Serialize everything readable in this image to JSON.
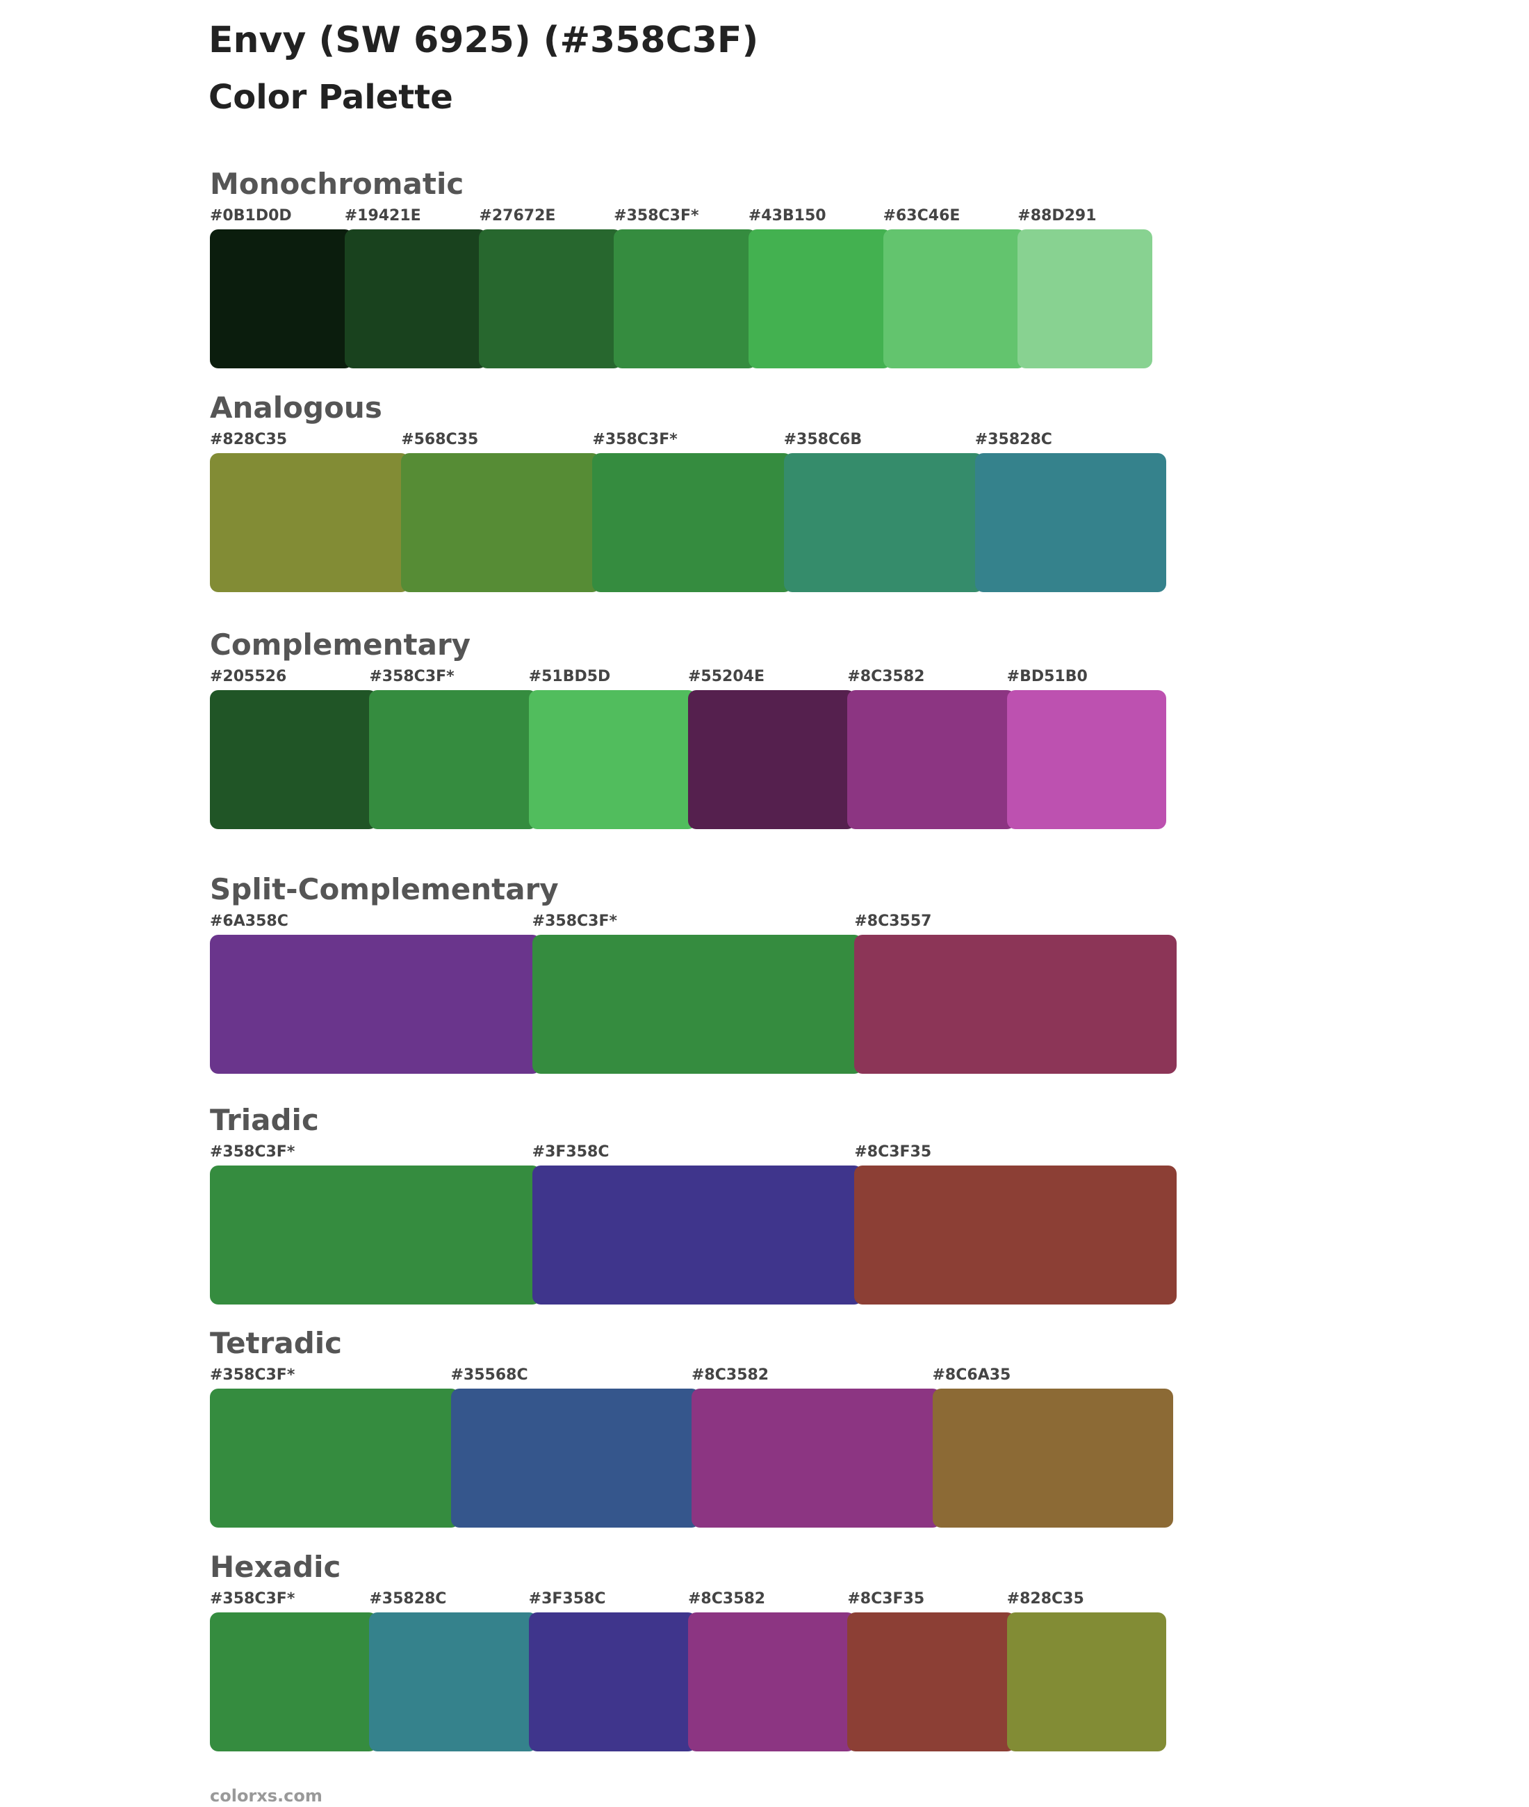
{
  "header": {
    "title": "Envy (SW 6925) (#358C3F)",
    "subtitle": "Color Palette"
  },
  "sections": [
    {
      "title": "Monochromatic",
      "swatches": [
        {
          "label": "#0B1D0D",
          "color": "#0B1D0D"
        },
        {
          "label": "#19421E",
          "color": "#19421E"
        },
        {
          "label": "#27672E",
          "color": "#27672E"
        },
        {
          "label": "#358C3F*",
          "color": "#358C3F"
        },
        {
          "label": "#43B150",
          "color": "#43B150"
        },
        {
          "label": "#63C46E",
          "color": "#63C46E"
        },
        {
          "label": "#88D291",
          "color": "#88D291"
        }
      ]
    },
    {
      "title": "Analogous",
      "swatches": [
        {
          "label": "#828C35",
          "color": "#828C35"
        },
        {
          "label": "#568C35",
          "color": "#568C35"
        },
        {
          "label": "#358C3F*",
          "color": "#358C3F"
        },
        {
          "label": "#358C6B",
          "color": "#358C6B"
        },
        {
          "label": "#35828C",
          "color": "#35828C"
        }
      ]
    },
    {
      "title": "Complementary",
      "swatches": [
        {
          "label": "#205526",
          "color": "#205526"
        },
        {
          "label": "#358C3F*",
          "color": "#358C3F"
        },
        {
          "label": "#51BD5D",
          "color": "#51BD5D"
        },
        {
          "label": "#55204E",
          "color": "#55204E"
        },
        {
          "label": "#8C3582",
          "color": "#8C3582"
        },
        {
          "label": "#BD51B0",
          "color": "#BD51B0"
        }
      ]
    },
    {
      "title": "Split-Complementary",
      "swatches": [
        {
          "label": "#6A358C",
          "color": "#6A358C"
        },
        {
          "label": "#358C3F*",
          "color": "#358C3F"
        },
        {
          "label": "#8C3557",
          "color": "#8C3557"
        }
      ]
    },
    {
      "title": "Triadic",
      "swatches": [
        {
          "label": "#358C3F*",
          "color": "#358C3F"
        },
        {
          "label": "#3F358C",
          "color": "#3F358C"
        },
        {
          "label": "#8C3F35",
          "color": "#8C3F35"
        }
      ]
    },
    {
      "title": "Tetradic",
      "swatches": [
        {
          "label": "#358C3F*",
          "color": "#358C3F"
        },
        {
          "label": "#35568C",
          "color": "#35568C"
        },
        {
          "label": "#8C3582",
          "color": "#8C3582"
        },
        {
          "label": "#8C6A35",
          "color": "#8C6A35"
        }
      ]
    },
    {
      "title": "Hexadic",
      "swatches": [
        {
          "label": "#358C3F*",
          "color": "#358C3F"
        },
        {
          "label": "#35828C",
          "color": "#35828C"
        },
        {
          "label": "#3F358C",
          "color": "#3F358C"
        },
        {
          "label": "#8C3582",
          "color": "#8C3582"
        },
        {
          "label": "#8C3F35",
          "color": "#8C3F35"
        },
        {
          "label": "#828C35",
          "color": "#828C35"
        }
      ]
    }
  ],
  "footer": "colorxs.com"
}
